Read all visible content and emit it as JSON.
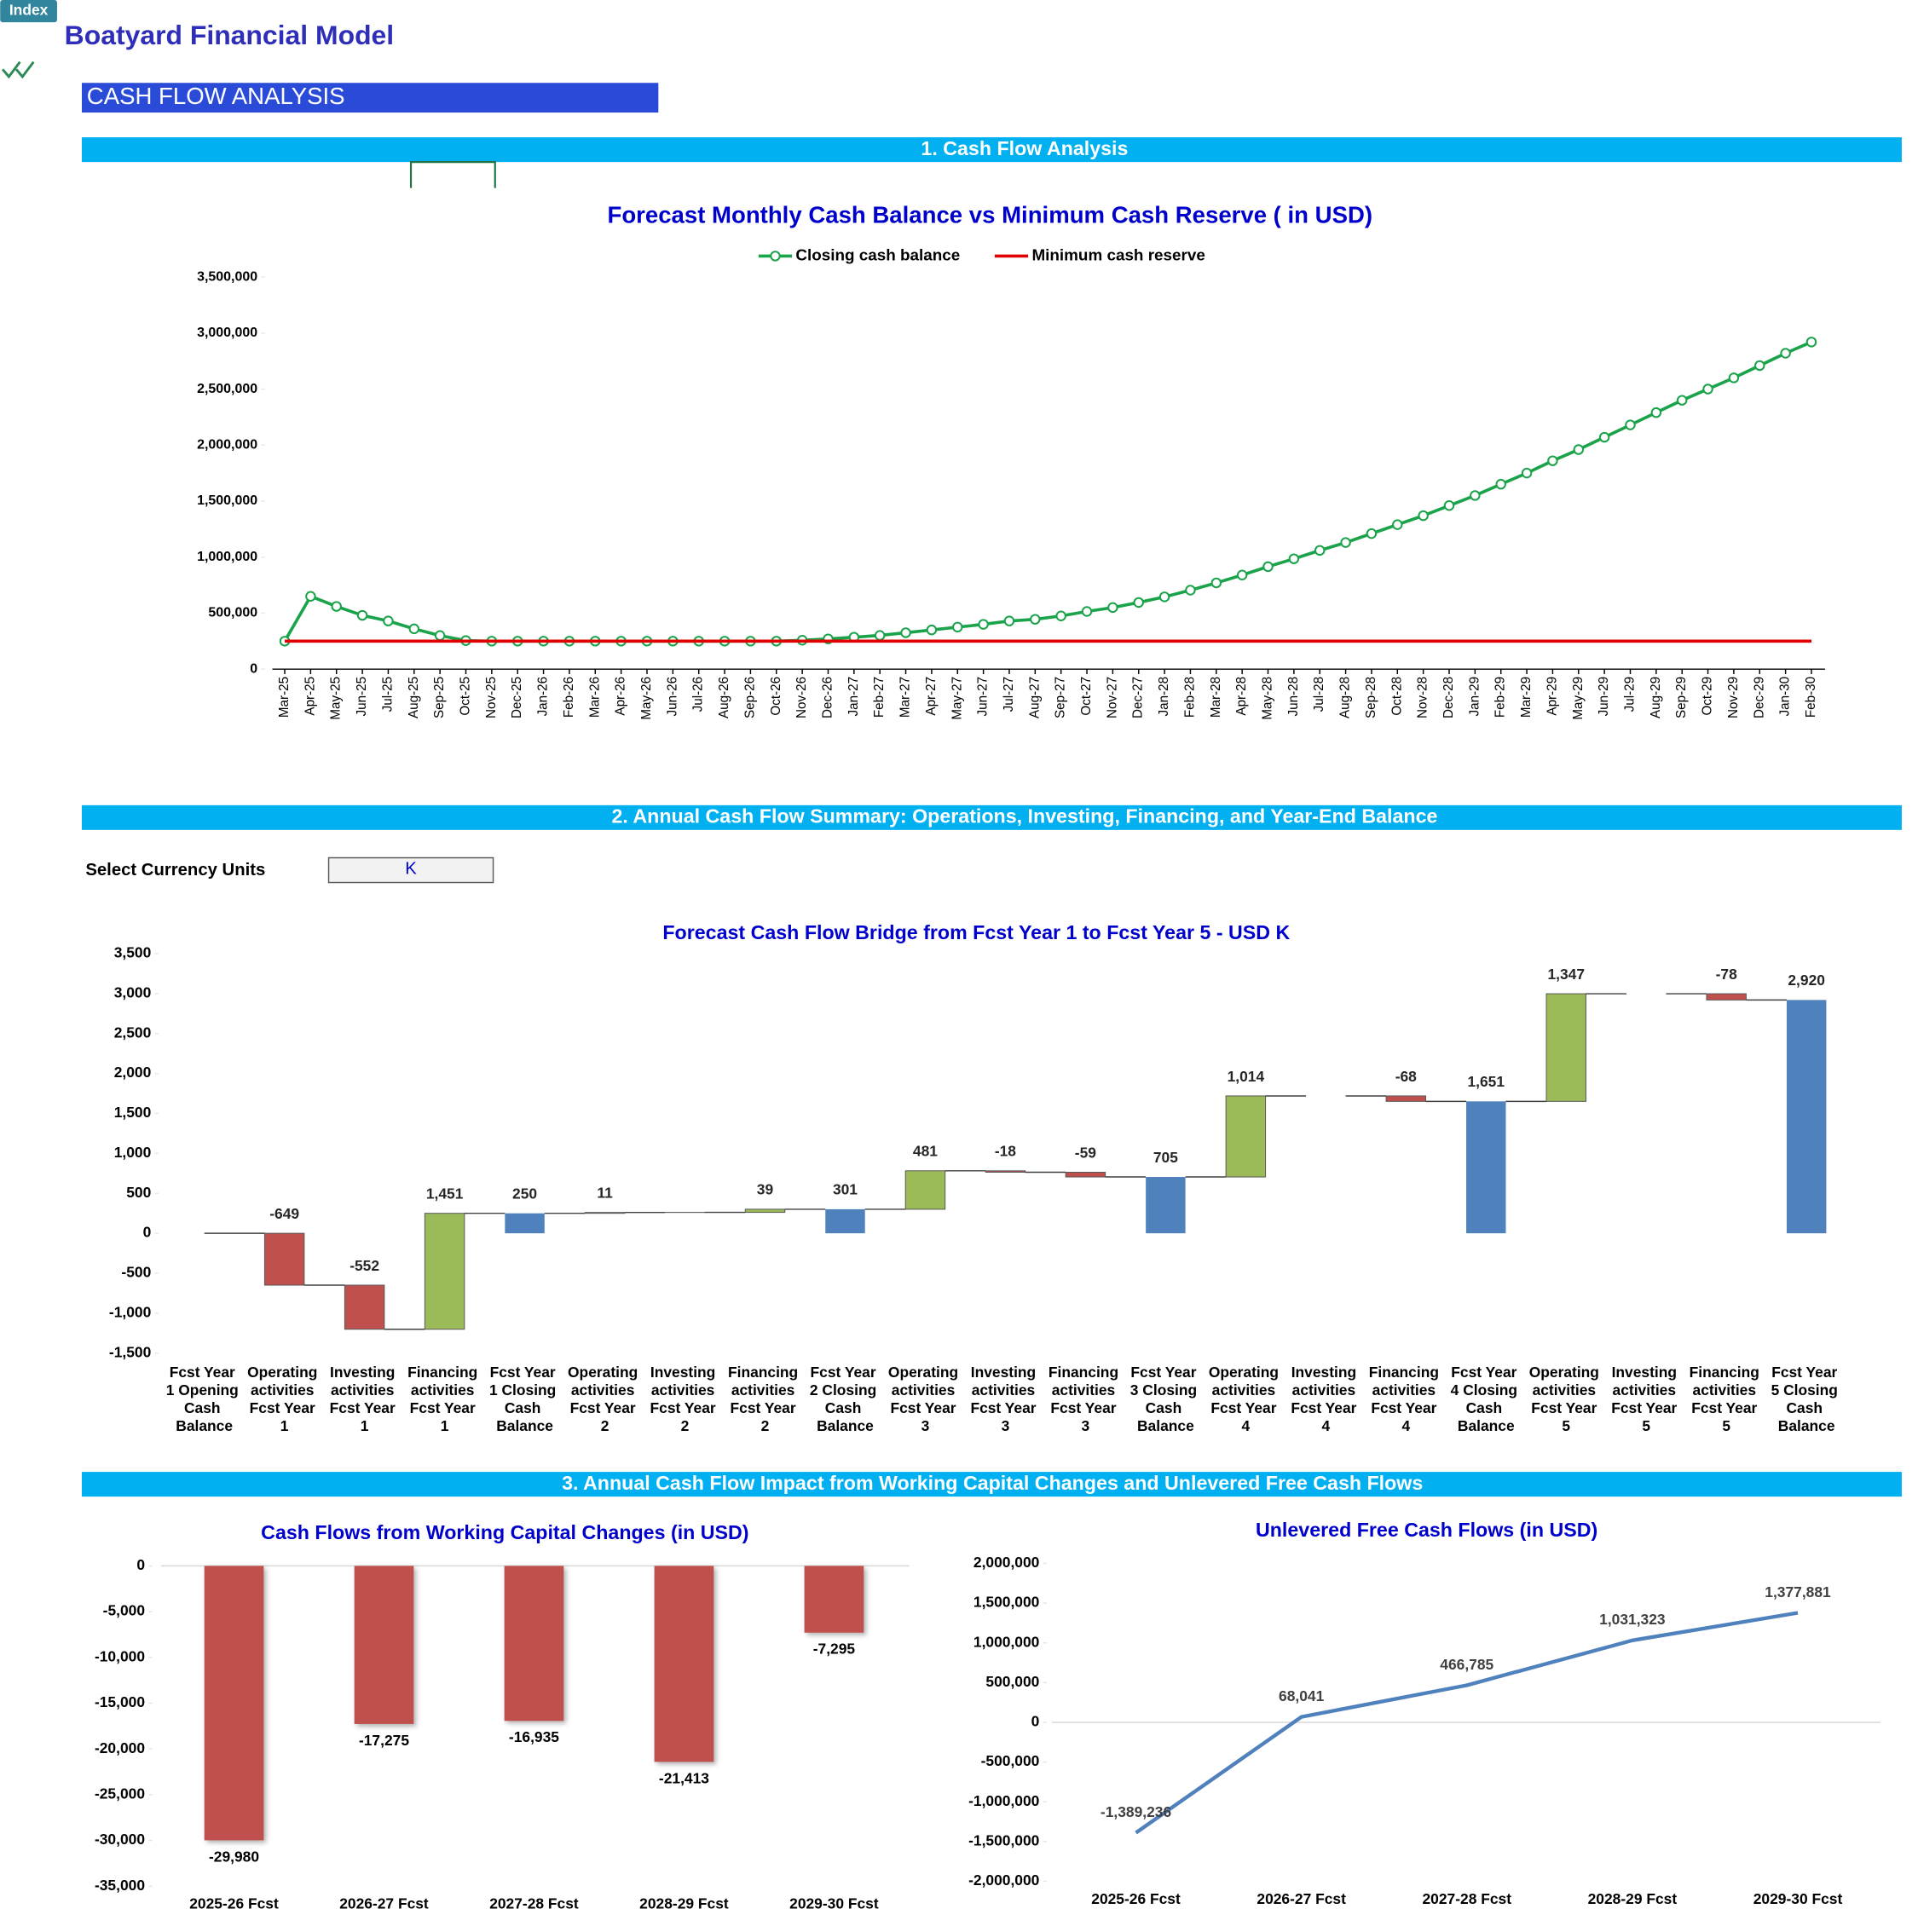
{
  "header": {
    "button": "Index",
    "title": "Boatyard Financial Model",
    "page_heading": "CASH FLOW ANALYSIS"
  },
  "sections": [
    "1. Cash Flow Analysis",
    "2. Annual Cash Flow Summary: Operations, Investing, Financing, and Year-End Balance",
    "3. Annual Cash Flow Impact from Working Capital Changes and Unlevered Free Cash Flows"
  ],
  "currency_selector": {
    "label": "Select Currency Units",
    "value": "K"
  },
  "chart_data": [
    {
      "type": "line",
      "title": "Forecast Monthly Cash Balance vs Minimum Cash Reserve ( in USD)",
      "categories": [
        "Mar-25",
        "Apr-25",
        "May-25",
        "Jun-25",
        "Jul-25",
        "Aug-25",
        "Sep-25",
        "Oct-25",
        "Nov-25",
        "Dec-25",
        "Jan-26",
        "Feb-26",
        "Mar-26",
        "Apr-26",
        "May-26",
        "Jun-26",
        "Jul-26",
        "Aug-26",
        "Sep-26",
        "Oct-26",
        "Nov-26",
        "Dec-26",
        "Jan-27",
        "Feb-27",
        "Mar-27",
        "Apr-27",
        "May-27",
        "Jun-27",
        "Jul-27",
        "Aug-27",
        "Sep-27",
        "Oct-27",
        "Nov-27",
        "Dec-27",
        "Jan-28",
        "Feb-28",
        "Mar-28",
        "Apr-28",
        "May-28",
        "Jun-28",
        "Jul-28",
        "Aug-28",
        "Sep-28",
        "Oct-28",
        "Nov-28",
        "Dec-28",
        "Jan-29",
        "Feb-29",
        "Mar-29",
        "Apr-29",
        "May-29",
        "Jun-29",
        "Jul-29",
        "Aug-29",
        "Sep-29",
        "Oct-29",
        "Nov-29",
        "Dec-29",
        "Jan-30",
        "Feb-30"
      ],
      "series": [
        {
          "name": "Closing cash balance",
          "color": "#1aa34a",
          "marker": "circle",
          "values": [
            250000,
            650000,
            560000,
            480000,
            430000,
            360000,
            300000,
            255000,
            250000,
            250000,
            250000,
            250000,
            250000,
            250000,
            250000,
            250000,
            250000,
            250000,
            250000,
            250000,
            258000,
            270000,
            285000,
            301000,
            325000,
            350000,
            375000,
            400000,
            430000,
            445000,
            475000,
            515000,
            550000,
            595000,
            645000,
            705000,
            770000,
            840000,
            915000,
            985000,
            1060000,
            1130000,
            1210000,
            1290000,
            1370000,
            1460000,
            1550000,
            1651000,
            1750000,
            1860000,
            1960000,
            2070000,
            2180000,
            2290000,
            2400000,
            2500000,
            2600000,
            2710000,
            2820000,
            2920000
          ]
        },
        {
          "name": "Minimum cash reserve",
          "color": "#e00000",
          "values": [
            250000,
            250000,
            250000,
            250000,
            250000,
            250000,
            250000,
            250000,
            250000,
            250000,
            250000,
            250000,
            250000,
            250000,
            250000,
            250000,
            250000,
            250000,
            250000,
            250000,
            250000,
            250000,
            250000,
            250000,
            250000,
            250000,
            250000,
            250000,
            250000,
            250000,
            250000,
            250000,
            250000,
            250000,
            250000,
            250000,
            250000,
            250000,
            250000,
            250000,
            250000,
            250000,
            250000,
            250000,
            250000,
            250000,
            250000,
            250000,
            250000,
            250000,
            250000,
            250000,
            250000,
            250000,
            250000,
            250000,
            250000,
            250000,
            250000,
            250000
          ]
        }
      ],
      "ylim": [
        0,
        3500000
      ],
      "yticks": [
        0,
        {
          "value": 500000,
          "label": "500,000"
        },
        {
          "value": 1000000,
          "label": "1,000,000"
        },
        {
          "value": 1500000,
          "label": "1,500,000"
        },
        {
          "value": 2000000,
          "label": "2,000,000"
        },
        {
          "value": 2500000,
          "label": "2,500,000"
        },
        {
          "value": 3000000,
          "label": "3,000,000"
        },
        {
          "value": 3500000,
          "label": "3,500,000"
        }
      ],
      "legend": "top"
    },
    {
      "type": "waterfall",
      "title": "Forecast Cash Flow Bridge from Fcst Year 1 to Fcst Year 5 - USD K",
      "categories": [
        "Fcst Year 1 Opening Cash Balance",
        "Operating activities Fcst Year 1",
        "Investing activities Fcst Year 1",
        "Financing activities Fcst Year 1",
        "Fcst Year 1 Closing Cash Balance",
        "Operating activities Fcst Year 2",
        "Investing activities Fcst Year 2",
        "Financing activities Fcst Year 2",
        "Fcst Year 2 Closing Cash Balance",
        "Operating activities Fcst Year 3",
        "Investing activities Fcst Year 3",
        "Financing activities Fcst Year 3",
        "Fcst Year 3 Closing Cash Balance",
        "Operating activities Fcst Year 4",
        "Investing activities Fcst Year 4",
        "Financing activities Fcst Year 4",
        "Fcst Year 4 Closing Cash Balance",
        "Operating activities Fcst Year 5",
        "Investing activities Fcst Year 5",
        "Financing activities Fcst Year 5",
        "Fcst Year 5 Closing Cash Balance"
      ],
      "values": [
        0,
        -649,
        -552,
        1451,
        250,
        11,
        1,
        39,
        301,
        481,
        -18,
        -59,
        705,
        1014,
        0,
        -68,
        1651,
        1347,
        0,
        -78,
        2920
      ],
      "value_labels": [
        null,
        "-649",
        "-552",
        "1,451",
        "250",
        "11",
        null,
        "39",
        "301",
        "481",
        "-18",
        "-59",
        "705",
        "1,014",
        null,
        "-68",
        "1,651",
        "1,347",
        null,
        "-78",
        "2,920"
      ],
      "colors": [
        "#4f81bd",
        "#c0504d",
        "#c0504d",
        "#9bbb59",
        "#4f81bd",
        "#9bbb59",
        "#9bbb59",
        "#9bbb59",
        "#4f81bd",
        "#9bbb59",
        "#c0504d",
        "#c0504d",
        "#4f81bd",
        "#9bbb59",
        "#c0504d",
        "#c0504d",
        "#4f81bd",
        "#9bbb59",
        "#c0504d",
        "#c0504d",
        "#4f81bd"
      ],
      "total_color": "#4f81bd",
      "ylim": [
        -1500,
        3500
      ],
      "yticks": [
        {
          "value": -1500,
          "label": "-1,500"
        },
        {
          "value": -1000,
          "label": "-1,000"
        },
        -500,
        0,
        500,
        {
          "value": 1000,
          "label": "1,000"
        },
        {
          "value": 1500,
          "label": "1,500"
        },
        {
          "value": 2000,
          "label": "2,000"
        },
        {
          "value": 2500,
          "label": "2,500"
        },
        {
          "value": 3000,
          "label": "3,000"
        },
        {
          "value": 3500,
          "label": "3,500"
        }
      ]
    },
    {
      "type": "bar",
      "title": "Cash Flows from Working Capital Changes (in USD)",
      "categories": [
        "2025-26 Fcst",
        "2026-27 Fcst",
        "2027-28 Fcst",
        "2028-29 Fcst",
        "2029-30 Fcst"
      ],
      "values": [
        -29980,
        -17275,
        -16935,
        -21413,
        -7295
      ],
      "value_labels": [
        "-29,980",
        "-17,275",
        "-16,935",
        "-21,413",
        "-7,295"
      ],
      "color": "#c0504d",
      "ylim": [
        -35000,
        0
      ],
      "yticks": [
        {
          "value": -35000,
          "label": "-35,000"
        },
        {
          "value": -30000,
          "label": "-30,000"
        },
        {
          "value": -25000,
          "label": "-25,000"
        },
        {
          "value": -20000,
          "label": "-20,000"
        },
        {
          "value": -15000,
          "label": "-15,000"
        },
        {
          "value": -10000,
          "label": "-10,000"
        },
        {
          "value": -5000,
          "label": "-5,000"
        },
        0
      ]
    },
    {
      "type": "line",
      "title": "Unlevered Free Cash Flows (in USD)",
      "categories": [
        "2025-26 Fcst",
        "2026-27 Fcst",
        "2027-28 Fcst",
        "2028-29 Fcst",
        "2029-30 Fcst"
      ],
      "values": [
        -1389236,
        68041,
        466785,
        1031323,
        1377881
      ],
      "value_labels": [
        "-1,389,236",
        "68,041",
        "466,785",
        "1,031,323",
        "1,377,881"
      ],
      "color": "#4f81bd",
      "ylim": [
        -2000000,
        2000000
      ],
      "yticks": [
        {
          "value": -2000000,
          "label": "-2,000,000"
        },
        {
          "value": -1500000,
          "label": "-1,500,000"
        },
        {
          "value": -1000000,
          "label": "-1,000,000"
        },
        {
          "value": -500000,
          "label": "-500,000"
        },
        0,
        {
          "value": 500000,
          "label": "500,000"
        },
        {
          "value": 1000000,
          "label": "1,000,000"
        },
        {
          "value": 1500000,
          "label": "1,500,000"
        },
        {
          "value": 2000000,
          "label": "2,000,000"
        }
      ]
    }
  ]
}
